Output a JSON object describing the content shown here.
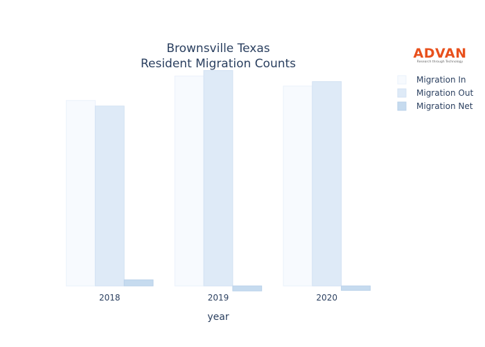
{
  "logo": {
    "name": "ADVAN",
    "tagline": "Research through Technology"
  },
  "chart_data": {
    "type": "bar",
    "title_line1": "Brownsville Texas",
    "title_line2": "Resident Migration Counts",
    "xlabel": "year",
    "ylabel": "",
    "categories": [
      "2018",
      "2019",
      "2020"
    ],
    "series": [
      {
        "name": "Migration In",
        "values": [
          16700,
          18900,
          18000
        ],
        "fill": "#f7fafe",
        "stroke": "#eaf1fb"
      },
      {
        "name": "Migration Out",
        "values": [
          16200,
          19400,
          18400
        ],
        "fill": "#deeaf7",
        "stroke": "#d3e2f3"
      },
      {
        "name": "Migration Net",
        "values": [
          550,
          -450,
          -400
        ],
        "fill": "#c6dbef",
        "stroke": "#b9d1ea"
      }
    ],
    "ylim": [
      -500,
      19500
    ],
    "grid": false,
    "legend_position": "top-right"
  }
}
